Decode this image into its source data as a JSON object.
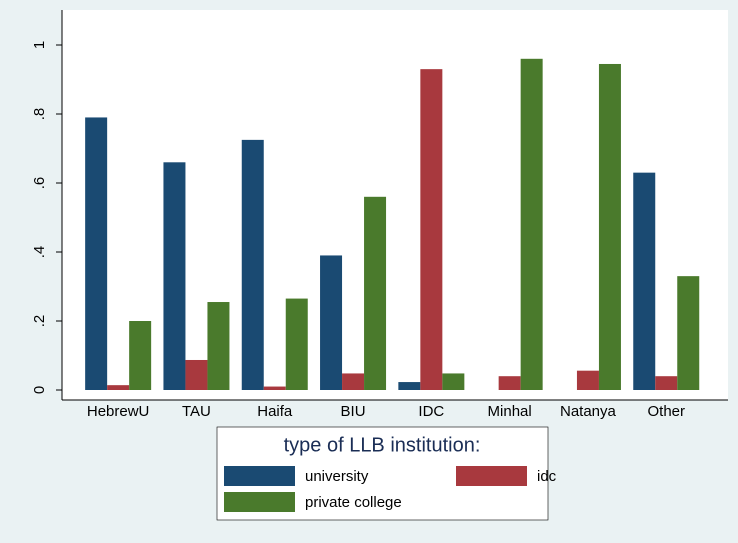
{
  "chart_data": {
    "type": "bar",
    "categories": [
      "HebrewU",
      "TAU",
      "Haifa",
      "BIU",
      "IDC",
      "Minhal",
      "Natanya",
      "Other"
    ],
    "series": [
      {
        "name": "university",
        "color": "#1a4a72",
        "values": [
          0.79,
          0.66,
          0.725,
          0.39,
          0.023,
          0,
          0,
          0.63
        ]
      },
      {
        "name": "idc",
        "color": "#a8393e",
        "values": [
          0.014,
          0.087,
          0.01,
          0.048,
          0.93,
          0.04,
          0.056,
          0.04
        ]
      },
      {
        "name": "private college",
        "color": "#4a7a2c",
        "values": [
          0.2,
          0.255,
          0.265,
          0.56,
          0.048,
          0.96,
          0.945,
          0.33
        ]
      }
    ],
    "ylim": [
      0,
      1
    ],
    "yticks": [
      0,
      {
        "value": 0.2,
        "label": ".2"
      },
      {
        "value": 0.4,
        "label": ".4"
      },
      {
        "value": 0.6,
        "label": ".6"
      },
      {
        "value": 0.8,
        "label": ".8"
      },
      1
    ],
    "legend_title": "type of LLB institution:",
    "legend_position": "bottom"
  }
}
